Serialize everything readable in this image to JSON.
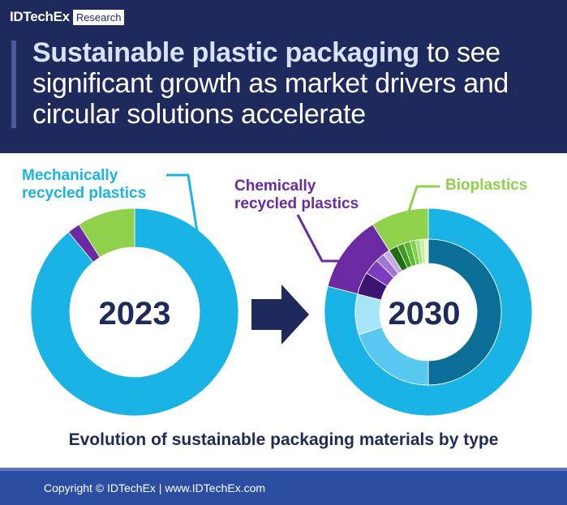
{
  "brand": {
    "name": "IDTechEx",
    "tag": "Research"
  },
  "header": {
    "title_bold": "Sustainable plastic packaging",
    "title_rest": " to see significant growth as market drivers and circular solutions accelerate"
  },
  "labels": {
    "mechanical": "Mechanically recycled plastics",
    "chemical": "Chemically recycled plastics",
    "bio": "Bioplastics"
  },
  "subtitle": "Evolution of sustainable packaging materials by type",
  "footer": {
    "text": "Copyright © IDTechEx |  www.IDTechEx.com"
  },
  "colors": {
    "mechanical": "#19b3e6",
    "chemical": "#6b2aa1",
    "bio": "#8fd14a",
    "header_bg": "#1f2a5c",
    "arrow": "#1f2a5c"
  },
  "chart_data": [
    {
      "type": "pie",
      "style": "donut",
      "center_label": "2023",
      "slices": [
        {
          "name": "Mechanically recycled plastics",
          "value": 89
        },
        {
          "name": "Chemically recycled plastics",
          "value": 2
        },
        {
          "name": "Bioplastics",
          "value": 9
        }
      ]
    },
    {
      "type": "pie",
      "style": "double-donut",
      "center_label": "2030",
      "outer_ring": [
        {
          "name": "Mechanically recycled plastics",
          "value": 79
        },
        {
          "name": "Chemically recycled plastics",
          "value": 12
        },
        {
          "name": "Bioplastics",
          "value": 9
        }
      ],
      "inner_ring": [
        {
          "group": "Mechanically recycled plastics",
          "value": 50
        },
        {
          "group": "Mechanically recycled plastics",
          "value": 20
        },
        {
          "group": "Mechanically recycled plastics",
          "value": 9
        },
        {
          "group": "Chemically recycled plastics",
          "value": 5
        },
        {
          "group": "Chemically recycled plastics",
          "value": 3.5
        },
        {
          "group": "Chemically recycled plastics",
          "value": 2
        },
        {
          "group": "Chemically recycled plastics",
          "value": 1.5
        },
        {
          "group": "Bioplastics",
          "value": 2
        },
        {
          "group": "Bioplastics",
          "value": 1.5
        },
        {
          "group": "Bioplastics",
          "value": 1.5
        },
        {
          "group": "Bioplastics",
          "value": 1.2
        },
        {
          "group": "Bioplastics",
          "value": 1
        },
        {
          "group": "Bioplastics",
          "value": 0.9
        },
        {
          "group": "Bioplastics",
          "value": 0.9
        }
      ]
    }
  ]
}
